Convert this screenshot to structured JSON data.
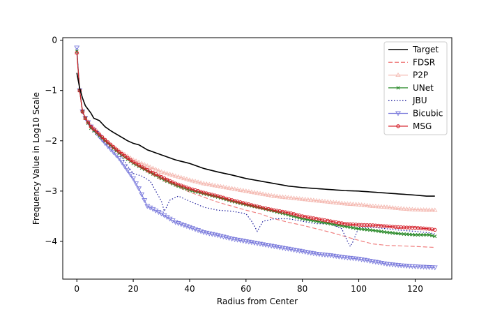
{
  "chart_data": {
    "type": "line",
    "title": "",
    "xlabel": "Radius from Center",
    "ylabel": "Frequency Value in Log10 Scale",
    "xlim": [
      -5,
      133
    ],
    "ylim": [
      -4.75,
      0.05
    ],
    "x_ticks": [
      0,
      20,
      40,
      60,
      80,
      100,
      120
    ],
    "y_ticks": [
      0,
      -1,
      -2,
      -3,
      -4
    ],
    "x_tick_labels": [
      "0",
      "20",
      "40",
      "60",
      "80",
      "100",
      "120"
    ],
    "y_tick_labels": [
      "0",
      "−1",
      "−2",
      "−3",
      "−4"
    ],
    "grid": false,
    "legend_position": "top-right",
    "x_range": [
      0,
      127
    ],
    "series": [
      {
        "name": "Target",
        "color": "#000000",
        "style": "solid",
        "marker": "none",
        "points": [
          [
            0,
            -0.65
          ],
          [
            1,
            -0.95
          ],
          [
            2,
            -1.15
          ],
          [
            3,
            -1.3
          ],
          [
            5,
            -1.45
          ],
          [
            6,
            -1.55
          ],
          [
            8,
            -1.6
          ],
          [
            10,
            -1.72
          ],
          [
            12,
            -1.8
          ],
          [
            15,
            -1.9
          ],
          [
            18,
            -2.0
          ],
          [
            20,
            -2.05
          ],
          [
            22,
            -2.08
          ],
          [
            25,
            -2.18
          ],
          [
            30,
            -2.28
          ],
          [
            35,
            -2.38
          ],
          [
            40,
            -2.45
          ],
          [
            45,
            -2.55
          ],
          [
            50,
            -2.62
          ],
          [
            55,
            -2.68
          ],
          [
            60,
            -2.75
          ],
          [
            65,
            -2.8
          ],
          [
            70,
            -2.85
          ],
          [
            75,
            -2.9
          ],
          [
            80,
            -2.93
          ],
          [
            85,
            -2.95
          ],
          [
            90,
            -2.97
          ],
          [
            95,
            -2.99
          ],
          [
            100,
            -3.0
          ],
          [
            105,
            -3.02
          ],
          [
            110,
            -3.04
          ],
          [
            115,
            -3.06
          ],
          [
            120,
            -3.08
          ],
          [
            124,
            -3.1
          ],
          [
            127,
            -3.1
          ]
        ]
      },
      {
        "name": "FDSR",
        "color": "#f08080",
        "style": "dashed",
        "marker": "none",
        "points": [
          [
            0,
            -0.2
          ],
          [
            1,
            -1.0
          ],
          [
            2,
            -1.4
          ],
          [
            3,
            -1.55
          ],
          [
            5,
            -1.72
          ],
          [
            7,
            -1.82
          ],
          [
            10,
            -2.0
          ],
          [
            15,
            -2.25
          ],
          [
            20,
            -2.45
          ],
          [
            25,
            -2.62
          ],
          [
            30,
            -2.78
          ],
          [
            35,
            -2.9
          ],
          [
            40,
            -3.02
          ],
          [
            45,
            -3.12
          ],
          [
            50,
            -3.22
          ],
          [
            55,
            -3.3
          ],
          [
            60,
            -3.38
          ],
          [
            65,
            -3.45
          ],
          [
            70,
            -3.55
          ],
          [
            75,
            -3.62
          ],
          [
            80,
            -3.68
          ],
          [
            85,
            -3.75
          ],
          [
            90,
            -3.82
          ],
          [
            95,
            -3.9
          ],
          [
            100,
            -3.98
          ],
          [
            105,
            -4.05
          ],
          [
            110,
            -4.08
          ],
          [
            115,
            -4.09
          ],
          [
            120,
            -4.1
          ],
          [
            127,
            -4.12
          ]
        ]
      },
      {
        "name": "P2P",
        "color": "#f4b8b0",
        "style": "solid",
        "marker": "triangle-up",
        "points": [
          [
            0,
            -0.25
          ],
          [
            1,
            -1.0
          ],
          [
            2,
            -1.4
          ],
          [
            3,
            -1.55
          ],
          [
            5,
            -1.7
          ],
          [
            7,
            -1.8
          ],
          [
            10,
            -2.0
          ],
          [
            15,
            -2.2
          ],
          [
            20,
            -2.38
          ],
          [
            25,
            -2.5
          ],
          [
            30,
            -2.62
          ],
          [
            35,
            -2.7
          ],
          [
            40,
            -2.78
          ],
          [
            45,
            -2.85
          ],
          [
            50,
            -2.9
          ],
          [
            55,
            -2.95
          ],
          [
            60,
            -3.0
          ],
          [
            65,
            -3.05
          ],
          [
            70,
            -3.1
          ],
          [
            75,
            -3.13
          ],
          [
            80,
            -3.16
          ],
          [
            85,
            -3.19
          ],
          [
            90,
            -3.22
          ],
          [
            95,
            -3.25
          ],
          [
            100,
            -3.27
          ],
          [
            105,
            -3.3
          ],
          [
            110,
            -3.32
          ],
          [
            115,
            -3.35
          ],
          [
            120,
            -3.37
          ],
          [
            127,
            -3.38
          ]
        ]
      },
      {
        "name": "UNet",
        "color": "#2a8a2a",
        "style": "solid",
        "marker": "x",
        "points": [
          [
            0,
            -0.22
          ],
          [
            1,
            -1.0
          ],
          [
            2,
            -1.42
          ],
          [
            3,
            -1.55
          ],
          [
            5,
            -1.75
          ],
          [
            7,
            -1.85
          ],
          [
            10,
            -2.0
          ],
          [
            15,
            -2.25
          ],
          [
            20,
            -2.45
          ],
          [
            25,
            -2.6
          ],
          [
            30,
            -2.75
          ],
          [
            35,
            -2.88
          ],
          [
            40,
            -2.98
          ],
          [
            45,
            -3.05
          ],
          [
            50,
            -3.12
          ],
          [
            55,
            -3.2
          ],
          [
            60,
            -3.27
          ],
          [
            65,
            -3.33
          ],
          [
            70,
            -3.4
          ],
          [
            75,
            -3.47
          ],
          [
            80,
            -3.55
          ],
          [
            85,
            -3.6
          ],
          [
            90,
            -3.65
          ],
          [
            95,
            -3.7
          ],
          [
            100,
            -3.75
          ],
          [
            105,
            -3.78
          ],
          [
            110,
            -3.82
          ],
          [
            115,
            -3.85
          ],
          [
            120,
            -3.87
          ],
          [
            125,
            -3.87
          ],
          [
            127,
            -3.9
          ]
        ]
      },
      {
        "name": "JBU",
        "color": "#1c1c9c",
        "style": "dotted",
        "marker": "none",
        "points": [
          [
            0,
            -0.2
          ],
          [
            1,
            -1.0
          ],
          [
            2,
            -1.4
          ],
          [
            3,
            -1.55
          ],
          [
            5,
            -1.7
          ],
          [
            7,
            -1.8
          ],
          [
            10,
            -2.0
          ],
          [
            15,
            -2.25
          ],
          [
            18,
            -2.5
          ],
          [
            20,
            -2.65
          ],
          [
            23,
            -2.7
          ],
          [
            26,
            -2.8
          ],
          [
            28,
            -3.0
          ],
          [
            30,
            -3.2
          ],
          [
            31,
            -3.4
          ],
          [
            32,
            -3.3
          ],
          [
            33,
            -3.18
          ],
          [
            36,
            -3.1
          ],
          [
            40,
            -3.2
          ],
          [
            45,
            -3.32
          ],
          [
            50,
            -3.38
          ],
          [
            55,
            -3.4
          ],
          [
            60,
            -3.45
          ],
          [
            62,
            -3.6
          ],
          [
            64,
            -3.8
          ],
          [
            66,
            -3.6
          ],
          [
            70,
            -3.55
          ],
          [
            75,
            -3.55
          ],
          [
            80,
            -3.6
          ],
          [
            85,
            -3.65
          ],
          [
            90,
            -3.65
          ],
          [
            94,
            -3.75
          ],
          [
            96,
            -4.0
          ],
          [
            97,
            -4.1
          ],
          [
            98,
            -4.0
          ],
          [
            100,
            -3.72
          ],
          [
            105,
            -3.72
          ],
          [
            110,
            -3.75
          ],
          [
            115,
            -3.78
          ],
          [
            120,
            -3.8
          ],
          [
            125,
            -3.83
          ],
          [
            127,
            -3.85
          ]
        ]
      },
      {
        "name": "Bicubic",
        "color": "#7b7bdc",
        "style": "solid",
        "marker": "triangle-down",
        "points": [
          [
            0,
            -0.15
          ],
          [
            1,
            -1.0
          ],
          [
            2,
            -1.42
          ],
          [
            3,
            -1.55
          ],
          [
            5,
            -1.72
          ],
          [
            7,
            -1.85
          ],
          [
            10,
            -2.05
          ],
          [
            15,
            -2.35
          ],
          [
            20,
            -2.75
          ],
          [
            22,
            -2.95
          ],
          [
            25,
            -3.3
          ],
          [
            30,
            -3.45
          ],
          [
            35,
            -3.62
          ],
          [
            40,
            -3.72
          ],
          [
            45,
            -3.82
          ],
          [
            50,
            -3.88
          ],
          [
            55,
            -3.95
          ],
          [
            60,
            -4.0
          ],
          [
            65,
            -4.05
          ],
          [
            70,
            -4.1
          ],
          [
            75,
            -4.15
          ],
          [
            80,
            -4.2
          ],
          [
            85,
            -4.25
          ],
          [
            90,
            -4.28
          ],
          [
            95,
            -4.32
          ],
          [
            100,
            -4.35
          ],
          [
            105,
            -4.4
          ],
          [
            110,
            -4.45
          ],
          [
            115,
            -4.48
          ],
          [
            120,
            -4.5
          ],
          [
            127,
            -4.52
          ]
        ]
      },
      {
        "name": "MSG",
        "color": "#d4202a",
        "style": "solid",
        "marker": "circle",
        "points": [
          [
            0,
            -0.25
          ],
          [
            1,
            -1.0
          ],
          [
            2,
            -1.42
          ],
          [
            3,
            -1.55
          ],
          [
            5,
            -1.72
          ],
          [
            7,
            -1.82
          ],
          [
            10,
            -1.98
          ],
          [
            15,
            -2.22
          ],
          [
            20,
            -2.42
          ],
          [
            25,
            -2.58
          ],
          [
            30,
            -2.72
          ],
          [
            35,
            -2.85
          ],
          [
            40,
            -2.95
          ],
          [
            45,
            -3.03
          ],
          [
            50,
            -3.1
          ],
          [
            55,
            -3.18
          ],
          [
            60,
            -3.25
          ],
          [
            65,
            -3.32
          ],
          [
            70,
            -3.38
          ],
          [
            75,
            -3.43
          ],
          [
            80,
            -3.5
          ],
          [
            85,
            -3.55
          ],
          [
            90,
            -3.6
          ],
          [
            95,
            -3.65
          ],
          [
            100,
            -3.67
          ],
          [
            105,
            -3.68
          ],
          [
            110,
            -3.7
          ],
          [
            115,
            -3.72
          ],
          [
            120,
            -3.73
          ],
          [
            125,
            -3.75
          ],
          [
            127,
            -3.77
          ]
        ]
      }
    ]
  }
}
